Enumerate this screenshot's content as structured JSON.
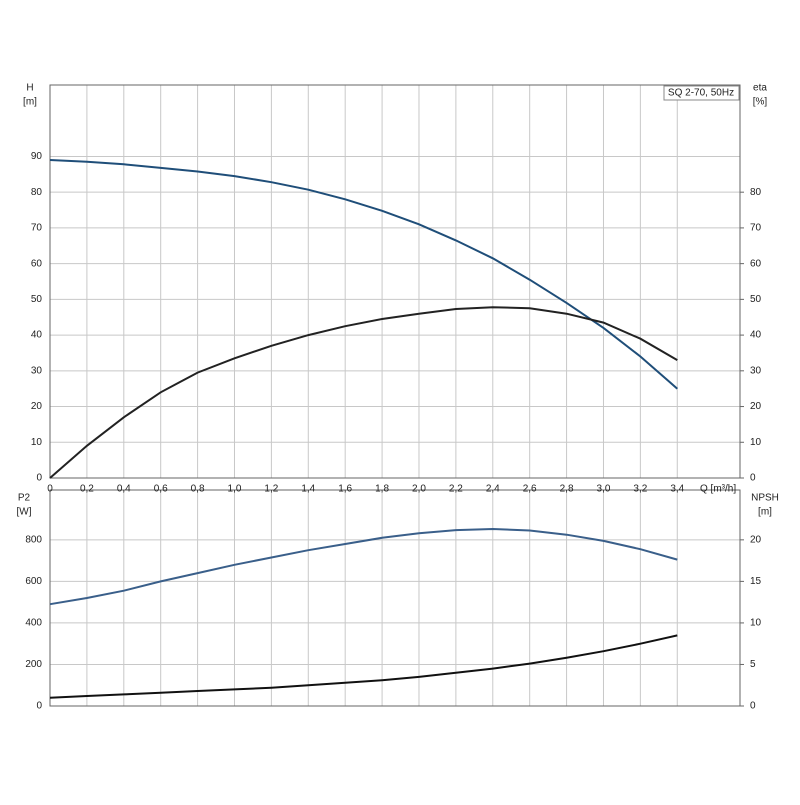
{
  "chart_data": [
    {
      "type": "line",
      "annotation": "SQ 2-70, 50Hz",
      "ylabel": "H",
      "yunit": "[m]",
      "y2label": "eta",
      "y2unit": "[%]",
      "xlabel": "Q [m³/h]",
      "x": [
        0,
        0.2,
        0.4,
        0.6,
        0.8,
        1.0,
        1.2,
        1.4,
        1.6,
        1.8,
        2.0,
        2.2,
        2.4,
        2.6,
        2.8,
        3.0,
        3.2,
        3.4
      ],
      "xlim": [
        0,
        3.74
      ],
      "xticks": [
        0,
        {
          "value": 0.2,
          "label": "0,2"
        },
        {
          "value": 0.4,
          "label": "0,4"
        },
        {
          "value": 0.6,
          "label": "0,6"
        },
        {
          "value": 0.8,
          "label": "0,8"
        },
        {
          "value": 1.0,
          "label": "1,0"
        },
        {
          "value": 1.2,
          "label": "1,2"
        },
        {
          "value": 1.4,
          "label": "1,4"
        },
        {
          "value": 1.6,
          "label": "1,6"
        },
        {
          "value": 1.8,
          "label": "1,8"
        },
        {
          "value": 2.0,
          "label": "2,0"
        },
        {
          "value": 2.2,
          "label": "2,2"
        },
        {
          "value": 2.4,
          "label": "2,4"
        },
        {
          "value": 2.6,
          "label": "2,6"
        },
        {
          "value": 2.8,
          "label": "2,8"
        },
        {
          "value": 3.0,
          "label": "3,0"
        },
        {
          "value": 3.2,
          "label": "3,2"
        },
        {
          "value": 3.4,
          "label": "3,4"
        }
      ],
      "ylim": [
        0,
        110
      ],
      "yticks": [
        0,
        10,
        20,
        30,
        40,
        50,
        60,
        70,
        80,
        90
      ],
      "y2lim": [
        0,
        110
      ],
      "y2ticks": [
        0,
        10,
        20,
        30,
        40,
        50,
        60,
        70,
        80
      ],
      "grid": true,
      "series": [
        {
          "color": "#1f4e79",
          "values": [
            89,
            88.5,
            87.8,
            86.8,
            85.8,
            84.5,
            82.8,
            80.7,
            78,
            74.8,
            71,
            66.5,
            61.5,
            55.5,
            49,
            42,
            34,
            25
          ]
        },
        {
          "color": "#222222",
          "axis": "y2",
          "values": [
            0,
            9,
            17,
            24,
            29.5,
            33.5,
            37,
            40,
            42.5,
            44.5,
            46,
            47.3,
            47.8,
            47.5,
            46,
            43.5,
            39,
            33
          ]
        }
      ]
    },
    {
      "type": "line",
      "ylabel": "P2",
      "yunit": "[W]",
      "y2label": "NPSH",
      "y2unit": "[m]",
      "x": [
        0,
        0.2,
        0.4,
        0.6,
        0.8,
        1.0,
        1.2,
        1.4,
        1.6,
        1.8,
        2.0,
        2.2,
        2.4,
        2.6,
        2.8,
        3.0,
        3.2,
        3.4
      ],
      "xlim": [
        0,
        3.74
      ],
      "ylim": [
        0,
        1040
      ],
      "yticks": [
        0,
        200,
        400,
        600,
        800
      ],
      "y2lim": [
        0,
        26
      ],
      "y2ticks": [
        0,
        5,
        10,
        15,
        20
      ],
      "grid": true,
      "series": [
        {
          "color": "#3a5f8a",
          "values": [
            490,
            520,
            555,
            600,
            640,
            680,
            715,
            750,
            780,
            810,
            832,
            847,
            852,
            845,
            825,
            795,
            755,
            705
          ]
        },
        {
          "color": "#111111",
          "axis": "y2",
          "values": [
            1.0,
            1.2,
            1.4,
            1.6,
            1.8,
            2.0,
            2.2,
            2.5,
            2.8,
            3.1,
            3.5,
            4.0,
            4.5,
            5.1,
            5.8,
            6.6,
            7.5,
            8.5
          ]
        }
      ]
    }
  ]
}
